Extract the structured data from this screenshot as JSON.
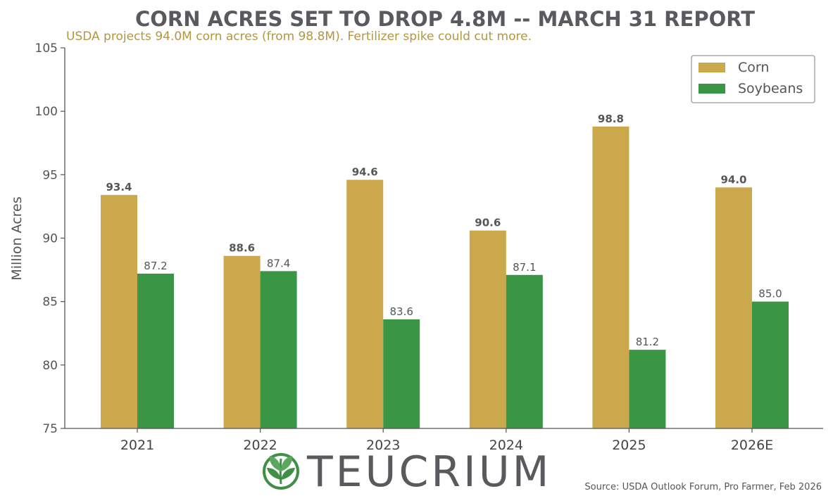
{
  "chart_data": {
    "type": "bar",
    "title": "CORN ACRES SET TO DROP 4.8M -- MARCH 31 REPORT",
    "subtitle": "USDA projects 94.0M corn acres (from 98.8M). Fertilizer spike could cut more.",
    "xlabel": "",
    "ylabel": "Million Acres",
    "ylim": [
      75,
      105
    ],
    "yticks": [
      75,
      80,
      85,
      90,
      95,
      100,
      105
    ],
    "grid": false,
    "legend_position": "top-right",
    "categories": [
      "2021",
      "2022",
      "2023",
      "2024",
      "2025",
      "2026E"
    ],
    "series": [
      {
        "name": "Corn",
        "color": "#cba84b",
        "values": [
          93.4,
          88.6,
          94.6,
          90.6,
          98.8,
          94.0
        ],
        "labels": [
          "93.4",
          "88.6",
          "94.6",
          "90.6",
          "98.8",
          "94.0"
        ]
      },
      {
        "name": "Soybeans",
        "color": "#3a9645",
        "values": [
          87.2,
          87.4,
          83.6,
          87.1,
          81.2,
          85.0
        ],
        "labels": [
          "87.2",
          "87.4",
          "83.6",
          "87.1",
          "81.2",
          "85.0"
        ]
      }
    ],
    "source": "Source: USDA Outlook Forum, Pro Farmer, Feb 2026"
  },
  "branding": {
    "logo_text": "TEUCRIUM",
    "logo_icon": "leaf-sprout-icon",
    "logo_colors": {
      "circle": "#3f8f45",
      "leaf": "#5aa85d",
      "text": "#5a5a5e"
    }
  },
  "colors": {
    "axis": "#555558",
    "text": "#555558"
  }
}
